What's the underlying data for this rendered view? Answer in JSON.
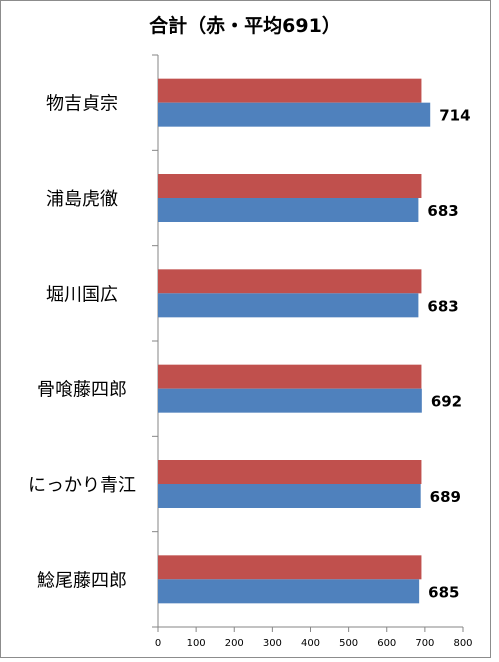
{
  "chart_data": {
    "type": "bar",
    "orientation": "horizontal",
    "title": "合計（赤・平均691）",
    "categories": [
      "物吉貞宗",
      "浦島虎徹",
      "堀川国広",
      "骨喰藤四郎",
      "にっかり青江",
      "鯰尾藤四郎"
    ],
    "series": [
      {
        "values": [
          691,
          691,
          691,
          691,
          691,
          691
        ],
        "color": "#c0504d"
      },
      {
        "values": [
          714,
          683,
          683,
          692,
          689,
          685
        ],
        "color": "#4f81bd"
      }
    ],
    "data_labels": [
      "714",
      "683",
      "683",
      "692",
      "689",
      "685"
    ],
    "xlim": [
      0,
      800
    ],
    "xticks": [
      0,
      100,
      200,
      300,
      400,
      500,
      600,
      700,
      800
    ],
    "grid": false,
    "legend": "none"
  }
}
